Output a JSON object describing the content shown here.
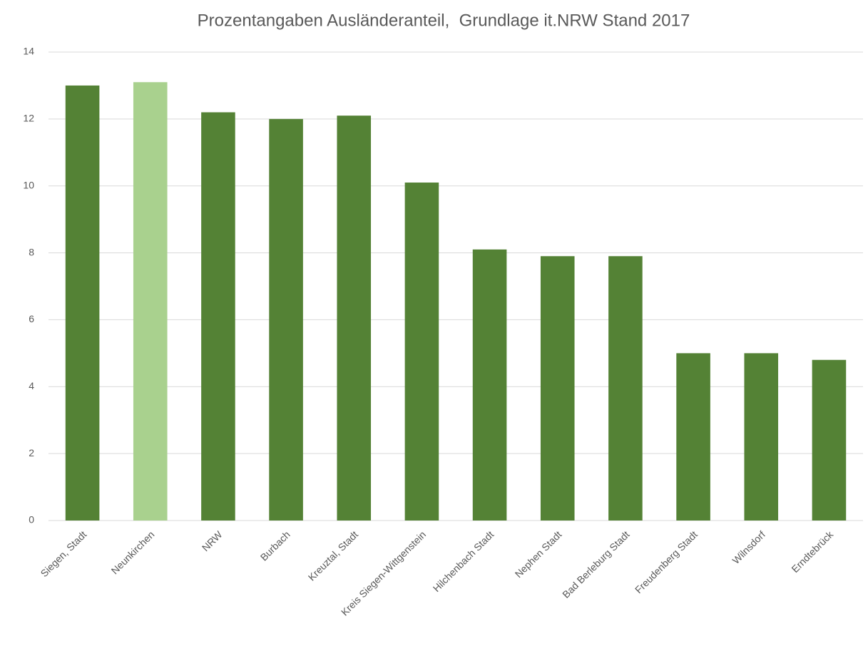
{
  "chart_data": {
    "type": "bar",
    "title": "Prozentangaben Ausländeranteil,  Grundlage it.NRW Stand 2017",
    "categories": [
      "Siegen, Stadt",
      "Neunkirchen",
      "NRW",
      "Burbach",
      "Kreuztal, Stadt",
      "Kreis Siegen-Wittgenstein",
      "Hilchenbach Stadt",
      "Nephen Stadt",
      "Bad Berleburg Stadt",
      "Freudenberg Stadt",
      "Wilnsdorf",
      "Erndtebrück"
    ],
    "values": [
      13,
      13.1,
      12.2,
      12,
      12.1,
      10.1,
      8.1,
      7.9,
      7.9,
      5,
      5,
      4.8
    ],
    "colors": [
      "#548235",
      "#a9d18e",
      "#548235",
      "#548235",
      "#548235",
      "#548235",
      "#548235",
      "#548235",
      "#548235",
      "#548235",
      "#548235",
      "#548235"
    ],
    "ylim": [
      0,
      14
    ],
    "yticks": [
      0,
      2,
      4,
      6,
      8,
      10,
      12,
      14
    ],
    "grid": true
  }
}
